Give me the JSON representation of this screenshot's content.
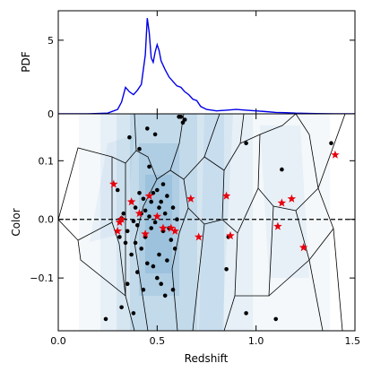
{
  "chart_data": [
    {
      "type": "line",
      "panel": "top",
      "ylabel": "PDF",
      "xlim": [
        0.0,
        1.5
      ],
      "ylim": [
        0,
        7
      ],
      "yticks": [
        0,
        5
      ],
      "ytick_labels": [
        "0",
        "5"
      ],
      "line_color": "#0000e6",
      "series": [
        {
          "x": [
            0.0,
            0.15,
            0.25,
            0.3,
            0.32,
            0.34,
            0.36,
            0.38,
            0.4,
            0.42,
            0.44,
            0.45,
            0.46,
            0.47,
            0.48,
            0.49,
            0.5,
            0.51,
            0.52,
            0.54,
            0.56,
            0.58,
            0.6,
            0.62,
            0.64,
            0.66,
            0.68,
            0.7,
            0.72,
            0.75,
            0.8,
            0.85,
            0.9,
            0.95,
            1.0,
            1.05,
            1.1,
            1.15,
            1.2,
            1.3,
            1.4,
            1.5
          ],
          "values": [
            0.0,
            0.0,
            0.05,
            0.3,
            0.8,
            1.8,
            1.5,
            1.3,
            1.6,
            2.0,
            4.0,
            6.5,
            5.5,
            3.8,
            3.5,
            4.2,
            4.7,
            4.3,
            3.6,
            3.0,
            2.5,
            2.2,
            1.9,
            1.8,
            1.5,
            1.3,
            1.0,
            0.9,
            0.5,
            0.3,
            0.2,
            0.25,
            0.3,
            0.25,
            0.2,
            0.15,
            0.1,
            0.08,
            0.05,
            0.02,
            0.0,
            0.0
          ]
        }
      ]
    },
    {
      "type": "scatter",
      "panel": "bottom",
      "xlabel": "Redshift",
      "ylabel": "Color",
      "xlim": [
        0.0,
        1.5
      ],
      "ylim": [
        -0.19,
        0.18
      ],
      "xticks": [
        0.0,
        0.5,
        1.0,
        1.5
      ],
      "xtick_labels": [
        "0.0",
        "0.5",
        "1.0",
        "1.5"
      ],
      "yticks": [
        -0.1,
        0.0,
        0.1
      ],
      "ytick_labels": [
        "−0.1",
        "0.0",
        "0.1"
      ],
      "reference_line_y": 0.0,
      "colors": {
        "points": "#000000",
        "stars": "#e8000b",
        "shade": "#1f77b4",
        "cell_edges": "#000000"
      },
      "black_points": [
        [
          0.24,
          -0.17
        ],
        [
          0.3,
          0.05
        ],
        [
          0.31,
          -0.03
        ],
        [
          0.32,
          -0.15
        ],
        [
          0.32,
          0.002
        ],
        [
          0.33,
          0.01
        ],
        [
          0.34,
          -0.04
        ],
        [
          0.35,
          -0.11
        ],
        [
          0.35,
          -0.02
        ],
        [
          0.36,
          0.14
        ],
        [
          0.37,
          0.03
        ],
        [
          0.37,
          -0.06
        ],
        [
          0.38,
          -0.003
        ],
        [
          0.38,
          -0.16
        ],
        [
          0.39,
          -0.04
        ],
        [
          0.39,
          0.02
        ],
        [
          0.4,
          -0.01
        ],
        [
          0.4,
          -0.09
        ],
        [
          0.41,
          0.12
        ],
        [
          0.41,
          0.045
        ],
        [
          0.42,
          0.01
        ],
        [
          0.42,
          -0.05
        ],
        [
          0.43,
          0.035
        ],
        [
          0.43,
          -0.12
        ],
        [
          0.44,
          0.015
        ],
        [
          0.44,
          -0.03
        ],
        [
          0.45,
          0.155
        ],
        [
          0.45,
          -0.075
        ],
        [
          0.46,
          0.005
        ],
        [
          0.46,
          0.09
        ],
        [
          0.47,
          -0.015
        ],
        [
          0.47,
          0.03
        ],
        [
          0.48,
          -0.08
        ],
        [
          0.48,
          0.045
        ],
        [
          0.49,
          0.145
        ],
        [
          0.49,
          -0.005
        ],
        [
          0.5,
          0.05
        ],
        [
          0.5,
          -0.1
        ],
        [
          0.51,
          0.02
        ],
        [
          0.51,
          -0.06
        ],
        [
          0.52,
          0.03
        ],
        [
          0.52,
          -0.11
        ],
        [
          0.53,
          0.06
        ],
        [
          0.53,
          -0.02
        ],
        [
          0.54,
          0.01
        ],
        [
          0.54,
          -0.13
        ],
        [
          0.55,
          -0.07
        ],
        [
          0.55,
          0.04
        ],
        [
          0.56,
          -0.015
        ],
        [
          0.57,
          -0.035
        ],
        [
          0.58,
          -0.12
        ],
        [
          0.58,
          0.02
        ],
        [
          0.59,
          -0.05
        ],
        [
          0.6,
          0.0
        ],
        [
          0.61,
          0.175
        ],
        [
          0.62,
          0.175
        ],
        [
          0.63,
          0.165
        ],
        [
          0.64,
          0.17
        ],
        [
          0.85,
          -0.085
        ],
        [
          0.86,
          -0.03
        ],
        [
          0.95,
          0.13
        ],
        [
          0.95,
          -0.16
        ],
        [
          1.1,
          -0.17
        ],
        [
          1.13,
          0.085
        ],
        [
          1.38,
          0.13
        ]
      ],
      "red_stars": [
        [
          0.28,
          0.06
        ],
        [
          0.3,
          -0.02
        ],
        [
          0.31,
          -0.005
        ],
        [
          0.32,
          0.0
        ],
        [
          0.37,
          0.03
        ],
        [
          0.41,
          0.01
        ],
        [
          0.44,
          -0.025
        ],
        [
          0.46,
          0.04
        ],
        [
          0.5,
          0.005
        ],
        [
          0.53,
          -0.015
        ],
        [
          0.57,
          -0.015
        ],
        [
          0.59,
          -0.02
        ],
        [
          0.67,
          0.035
        ],
        [
          0.71,
          -0.03
        ],
        [
          0.85,
          0.04
        ],
        [
          0.87,
          -0.028
        ],
        [
          1.11,
          -0.012
        ],
        [
          1.13,
          0.028
        ],
        [
          1.18,
          0.035
        ],
        [
          1.24,
          -0.048
        ],
        [
          1.4,
          0.11
        ]
      ]
    }
  ]
}
